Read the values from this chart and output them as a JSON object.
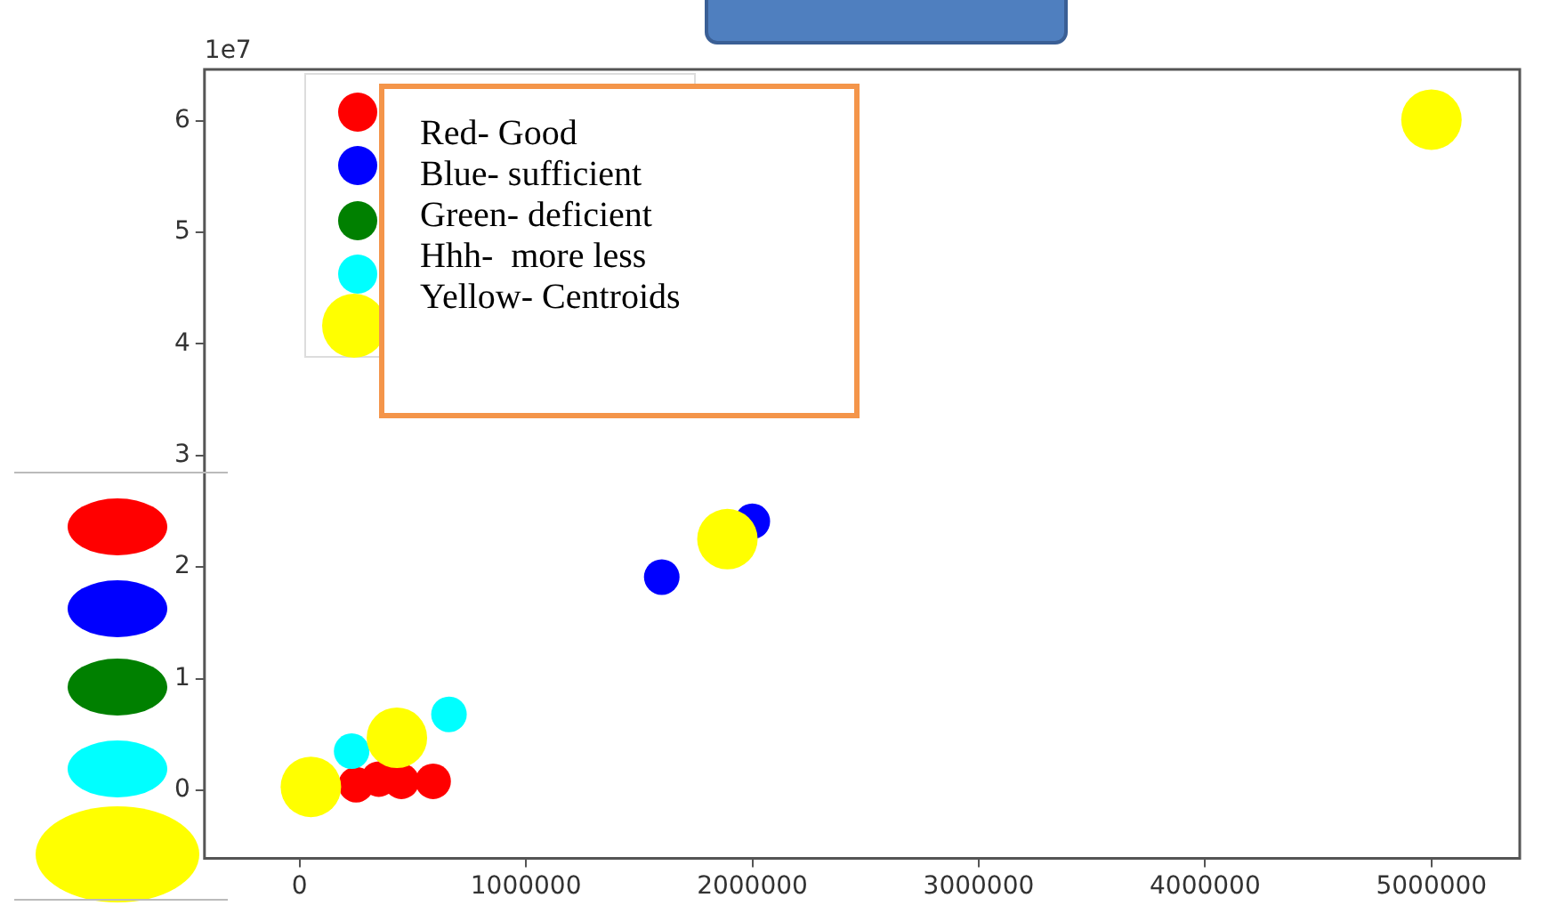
{
  "chart_data": {
    "type": "scatter",
    "xlim": [
      -420000,
      5390000
    ],
    "ylim": [
      -0.61,
      6.46
    ],
    "xticks": [
      0,
      1000000,
      2000000,
      3000000,
      4000000,
      5000000
    ],
    "yticks": [
      0,
      1,
      2,
      3,
      4,
      5,
      6
    ],
    "marker": "circle",
    "grid": false,
    "legend": false,
    "annotations": [
      "1e7",
      "Red- Good",
      "Blue- sufficient",
      "Green- deficient",
      "Hhh-  more less",
      "Yellow- Centroids"
    ],
    "series": [
      {
        "color": "#ff0000",
        "x": [
          null,
          250000,
          350000,
          450000,
          590000
        ],
        "values": [
          null,
          0.05,
          0.1,
          0.08,
          0.08
        ]
      },
      {
        "color": "#0000ff",
        "x": [
          1600000,
          2000000
        ],
        "values": [
          1.91,
          2.41
        ]
      },
      {
        "color": "#008000",
        "x": [
          null
        ],
        "values": [
          null
        ]
      },
      {
        "color": "#00ffff",
        "x": [
          230000,
          null,
          660000
        ],
        "values": [
          0.35,
          null,
          0.68
        ]
      },
      {
        "color": "#ffff00",
        "x": [
          50000,
          430000,
          1890000,
          5000000
        ],
        "values": [
          0.03,
          0.47,
          2.25,
          6.01
        ]
      }
    ]
  }
}
